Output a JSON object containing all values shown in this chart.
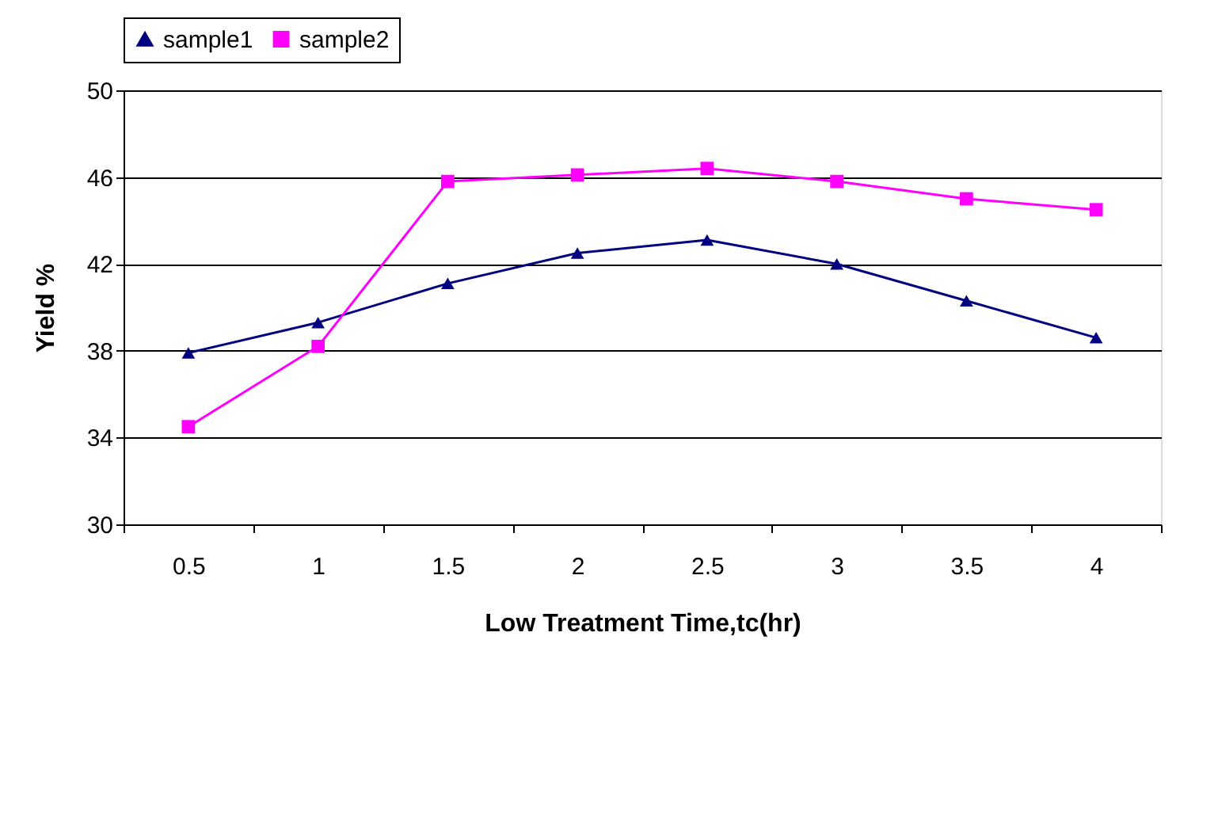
{
  "chart_data": {
    "type": "line",
    "xlabel": "Low Treatment Time,tc(hr)",
    "ylabel": "Yield %",
    "categories": [
      "0.5",
      "1",
      "1.5",
      "2",
      "2.5",
      "3",
      "3.5",
      "4"
    ],
    "series": [
      {
        "name": "sample1",
        "color": "#000080",
        "marker": "triangle",
        "values": [
          37.9,
          39.3,
          41.1,
          42.5,
          43.1,
          42.0,
          40.3,
          38.6
        ]
      },
      {
        "name": "sample2",
        "color": "#ff00ff",
        "marker": "square",
        "values": [
          34.5,
          38.2,
          45.8,
          46.1,
          46.4,
          45.8,
          45.0,
          44.5
        ]
      }
    ],
    "ylim": [
      30,
      50
    ],
    "yticks": [
      30,
      34,
      38,
      42,
      46,
      50
    ],
    "grid": "y",
    "legend": "top",
    "line_style": "solid"
  }
}
